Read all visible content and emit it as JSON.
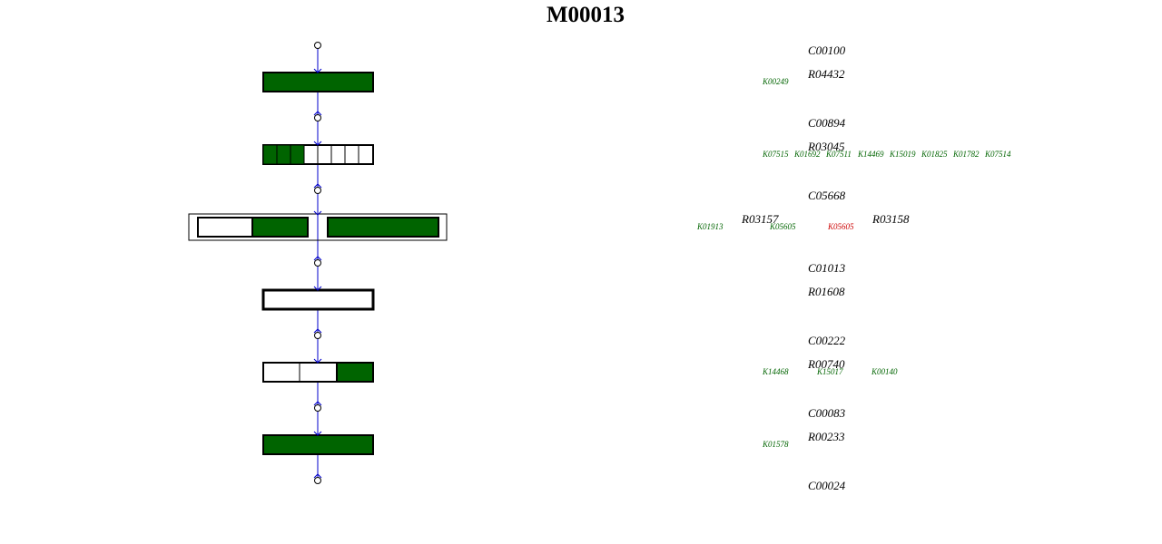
{
  "title": "M00013",
  "compounds": [
    "C00100",
    "C00894",
    "C05668",
    "C01013",
    "C00222",
    "C00083",
    "C00024"
  ],
  "reactions": [
    {
      "id": "R04432",
      "orthologs": [
        {
          "id": "K00249",
          "color": "#006400"
        }
      ]
    },
    {
      "id": "R03045",
      "orthologs": [
        {
          "id": "K07515",
          "color": "#006400"
        },
        {
          "id": "K01692",
          "color": "#006400"
        },
        {
          "id": "K07511",
          "color": "#006400"
        },
        {
          "id": "K14469",
          "color": "#006400"
        },
        {
          "id": "K15019",
          "color": "#006400"
        },
        {
          "id": "K01825",
          "color": "#006400"
        },
        {
          "id": "K01782",
          "color": "#006400"
        },
        {
          "id": "K07514",
          "color": "#006400"
        }
      ]
    },
    {
      "id": "R03157",
      "orthologs": [
        {
          "id": "K01913",
          "color": "#006400"
        },
        {
          "id": "K05605",
          "color": "#006400"
        }
      ]
    },
    {
      "id": "R03158",
      "orthologs": [
        {
          "id": "K05605",
          "color": "#cc0000"
        }
      ]
    },
    {
      "id": "R01608",
      "orthologs": []
    },
    {
      "id": "R00740",
      "orthologs": [
        {
          "id": "K14468",
          "color": "#006400"
        },
        {
          "id": "K15017",
          "color": "#006400"
        },
        {
          "id": "K00140",
          "color": "#006400"
        }
      ]
    },
    {
      "id": "R00233",
      "orthologs": [
        {
          "id": "K01578",
          "color": "#006400"
        }
      ]
    }
  ]
}
